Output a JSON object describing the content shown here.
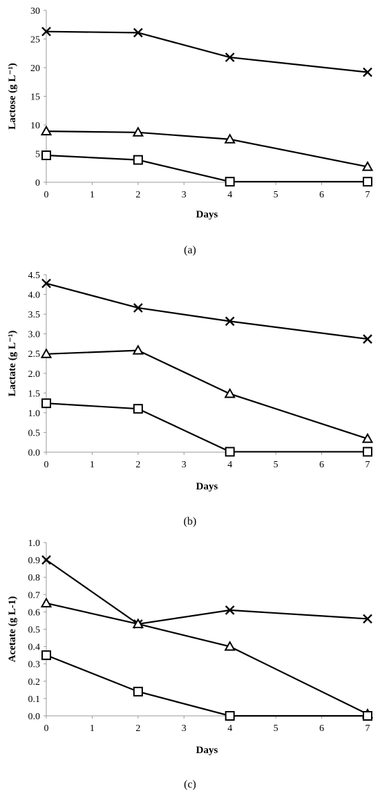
{
  "colors": {
    "line": "#000000",
    "axis": "#9a9a9a",
    "background": "#ffffff"
  },
  "chart_data": [
    {
      "type": "line",
      "panel_label": "(a)",
      "xlabel": "Days",
      "ylabel": "Lactose (g L⁻¹)",
      "x_ticks": [
        0,
        1,
        2,
        3,
        4,
        5,
        6,
        7
      ],
      "y_ticks": [
        "0",
        "5",
        "10",
        "15",
        "20",
        "25",
        "30"
      ],
      "xlim": [
        0,
        7
      ],
      "ylim": [
        0,
        30
      ],
      "x": [
        0,
        2,
        4,
        7
      ],
      "series": [
        {
          "marker": "cross",
          "values": [
            26.3,
            26.1,
            21.8,
            19.2
          ]
        },
        {
          "marker": "triangle",
          "values": [
            8.9,
            8.7,
            7.5,
            2.7
          ]
        },
        {
          "marker": "square",
          "values": [
            4.7,
            3.9,
            0.1,
            0.1
          ]
        }
      ]
    },
    {
      "type": "line",
      "panel_label": "(b)",
      "xlabel": "Days",
      "ylabel": "Lactate (g L⁻¹)",
      "x_ticks": [
        0,
        1,
        2,
        3,
        4,
        5,
        6,
        7
      ],
      "y_ticks": [
        "0.0",
        "0.5",
        "1.0",
        "1.5",
        "2.0",
        "2.5",
        "3.0",
        "3.5",
        "4.0",
        "4.5"
      ],
      "xlim": [
        0,
        7
      ],
      "ylim": [
        0,
        4.5
      ],
      "x": [
        0,
        2,
        4,
        7
      ],
      "series": [
        {
          "marker": "cross",
          "values": [
            4.28,
            3.66,
            3.32,
            2.87
          ]
        },
        {
          "marker": "triangle",
          "values": [
            2.49,
            2.58,
            1.48,
            0.34
          ]
        },
        {
          "marker": "square",
          "values": [
            1.24,
            1.1,
            0.01,
            0.01
          ]
        }
      ]
    },
    {
      "type": "line",
      "panel_label": "(c)",
      "xlabel": "Days",
      "ylabel": "Acetate (g L-1)",
      "x_ticks": [
        0,
        1,
        2,
        3,
        4,
        5,
        6,
        7
      ],
      "y_ticks": [
        "0.0",
        "0.1",
        "0.2",
        "0.3",
        "0.4",
        "0.5",
        "0.6",
        "0.7",
        "0.8",
        "0.9",
        "1.0"
      ],
      "xlim": [
        0,
        7
      ],
      "ylim": [
        0,
        1.0
      ],
      "x": [
        0,
        2,
        4,
        7
      ],
      "series": [
        {
          "marker": "cross",
          "values": [
            0.9,
            0.53,
            0.61,
            0.56
          ]
        },
        {
          "marker": "triangle",
          "values": [
            0.65,
            0.53,
            0.4,
            0.01
          ]
        },
        {
          "marker": "square",
          "values": [
            0.35,
            0.14,
            0.0,
            0.0
          ]
        }
      ]
    }
  ]
}
